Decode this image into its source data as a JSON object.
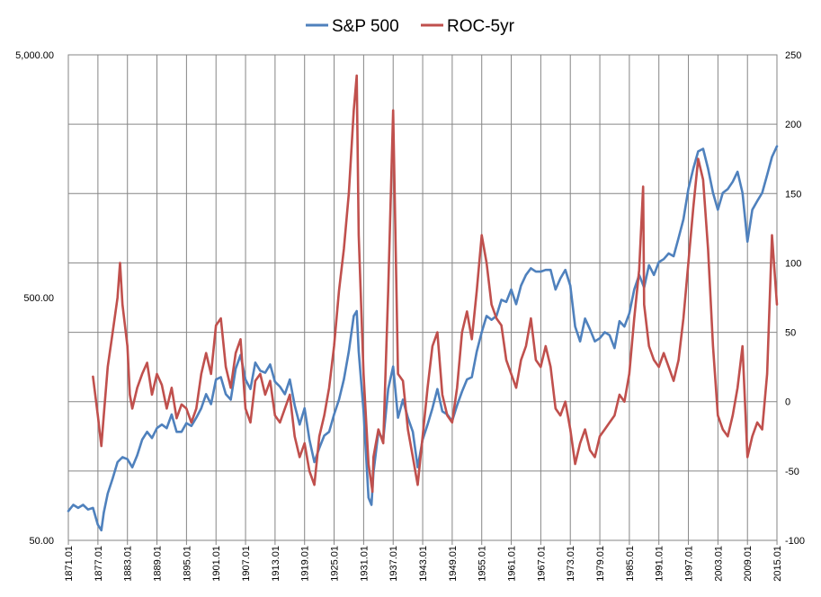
{
  "chart_data": {
    "type": "line",
    "title": "",
    "xlabel": "",
    "ylabel": "",
    "legend_position": "top-center",
    "grid": true,
    "x_ticks": [
      "1871.01",
      "1877.01",
      "1883.01",
      "1889.01",
      "1895.01",
      "1901.01",
      "1907.01",
      "1913.01",
      "1919.01",
      "1925.01",
      "1931.01",
      "1937.01",
      "1943.01",
      "1949.01",
      "1955.01",
      "1961.01",
      "1967.01",
      "1973.01",
      "1979.01",
      "1985.01",
      "1991.01",
      "1997.01",
      "2003.01",
      "2009.01",
      "2015.01"
    ],
    "y_left": {
      "scale": "log",
      "min": 50,
      "max": 5000,
      "tick_labels": [
        "5,000.00",
        "500.00",
        "50.00"
      ]
    },
    "y_right": {
      "scale": "linear",
      "min": -100,
      "max": 250,
      "step": 50,
      "tick_labels": [
        "250",
        "200",
        "150",
        "100",
        "50",
        "0",
        "-50",
        "-100"
      ]
    },
    "series": [
      {
        "name": "S&P 500",
        "axis": "left",
        "color": "#4f81bd",
        "points": [
          [
            1871.0,
            66
          ],
          [
            1872.0,
            70
          ],
          [
            1873.0,
            68
          ],
          [
            1874.0,
            70
          ],
          [
            1875.0,
            67
          ],
          [
            1876.0,
            68
          ],
          [
            1877.0,
            58
          ],
          [
            1877.7,
            55
          ],
          [
            1878.2,
            65
          ],
          [
            1879.0,
            78
          ],
          [
            1880.0,
            90
          ],
          [
            1881.0,
            105
          ],
          [
            1882.0,
            110
          ],
          [
            1883.0,
            108
          ],
          [
            1884.0,
            100
          ],
          [
            1885.0,
            112
          ],
          [
            1886.0,
            130
          ],
          [
            1887.0,
            140
          ],
          [
            1888.0,
            132
          ],
          [
            1889.0,
            145
          ],
          [
            1890.0,
            150
          ],
          [
            1891.0,
            145
          ],
          [
            1892.0,
            165
          ],
          [
            1893.0,
            140
          ],
          [
            1894.0,
            140
          ],
          [
            1895.0,
            152
          ],
          [
            1896.0,
            148
          ],
          [
            1897.0,
            160
          ],
          [
            1898.0,
            175
          ],
          [
            1899.0,
            200
          ],
          [
            1900.0,
            182
          ],
          [
            1901.0,
            230
          ],
          [
            1902.0,
            235
          ],
          [
            1903.0,
            200
          ],
          [
            1904.0,
            190
          ],
          [
            1905.0,
            255
          ],
          [
            1906.0,
            290
          ],
          [
            1907.0,
            230
          ],
          [
            1908.0,
            210
          ],
          [
            1909.0,
            270
          ],
          [
            1910.0,
            250
          ],
          [
            1911.0,
            245
          ],
          [
            1912.0,
            265
          ],
          [
            1913.0,
            225
          ],
          [
            1914.0,
            215
          ],
          [
            1915.0,
            200
          ],
          [
            1916.0,
            230
          ],
          [
            1917.0,
            180
          ],
          [
            1918.0,
            150
          ],
          [
            1919.0,
            175
          ],
          [
            1920.0,
            130
          ],
          [
            1921.0,
            105
          ],
          [
            1922.0,
            120
          ],
          [
            1923.0,
            135
          ],
          [
            1924.0,
            140
          ],
          [
            1925.0,
            165
          ],
          [
            1926.0,
            190
          ],
          [
            1927.0,
            230
          ],
          [
            1928.0,
            300
          ],
          [
            1929.0,
            420
          ],
          [
            1929.6,
            440
          ],
          [
            1930.0,
            300
          ],
          [
            1931.0,
            170
          ],
          [
            1932.0,
            75
          ],
          [
            1932.6,
            70
          ],
          [
            1933.0,
            95
          ],
          [
            1934.0,
            140
          ],
          [
            1935.0,
            130
          ],
          [
            1936.0,
            210
          ],
          [
            1937.0,
            260
          ],
          [
            1938.0,
            160
          ],
          [
            1939.0,
            190
          ],
          [
            1940.0,
            160
          ],
          [
            1941.0,
            140
          ],
          [
            1942.0,
            100
          ],
          [
            1943.0,
            130
          ],
          [
            1944.0,
            150
          ],
          [
            1945.0,
            175
          ],
          [
            1946.0,
            210
          ],
          [
            1947.0,
            170
          ],
          [
            1948.0,
            165
          ],
          [
            1949.0,
            155
          ],
          [
            1950.0,
            180
          ],
          [
            1951.0,
            205
          ],
          [
            1952.0,
            230
          ],
          [
            1953.0,
            235
          ],
          [
            1954.0,
            300
          ],
          [
            1955.0,
            360
          ],
          [
            1956.0,
            420
          ],
          [
            1957.0,
            405
          ],
          [
            1958.0,
            420
          ],
          [
            1959.0,
            490
          ],
          [
            1960.0,
            480
          ],
          [
            1961.0,
            540
          ],
          [
            1962.0,
            470
          ],
          [
            1963.0,
            560
          ],
          [
            1964.0,
            620
          ],
          [
            1965.0,
            660
          ],
          [
            1966.0,
            640
          ],
          [
            1967.0,
            640
          ],
          [
            1968.0,
            650
          ],
          [
            1969.0,
            650
          ],
          [
            1970.0,
            540
          ],
          [
            1971.0,
            600
          ],
          [
            1972.0,
            650
          ],
          [
            1973.0,
            560
          ],
          [
            1974.0,
            380
          ],
          [
            1975.0,
            330
          ],
          [
            1976.0,
            410
          ],
          [
            1977.0,
            370
          ],
          [
            1978.0,
            330
          ],
          [
            1979.0,
            340
          ],
          [
            1980.0,
            360
          ],
          [
            1981.0,
            350
          ],
          [
            1982.0,
            310
          ],
          [
            1983.0,
            400
          ],
          [
            1984.0,
            380
          ],
          [
            1985.0,
            430
          ],
          [
            1986.0,
            540
          ],
          [
            1987.0,
            620
          ],
          [
            1988.0,
            550
          ],
          [
            1989.0,
            680
          ],
          [
            1990.0,
            620
          ],
          [
            1991.0,
            700
          ],
          [
            1992.0,
            720
          ],
          [
            1993.0,
            760
          ],
          [
            1994.0,
            740
          ],
          [
            1995.0,
            880
          ],
          [
            1996.0,
            1050
          ],
          [
            1997.0,
            1400
          ],
          [
            1998.0,
            1700
          ],
          [
            1999.0,
            2000
          ],
          [
            2000.0,
            2050
          ],
          [
            2001.0,
            1700
          ],
          [
            2002.0,
            1350
          ],
          [
            2003.0,
            1150
          ],
          [
            2004.0,
            1350
          ],
          [
            2005.0,
            1400
          ],
          [
            2006.0,
            1500
          ],
          [
            2007.0,
            1650
          ],
          [
            2008.0,
            1350
          ],
          [
            2009.0,
            850
          ],
          [
            2010.0,
            1150
          ],
          [
            2011.0,
            1250
          ],
          [
            2012.0,
            1350
          ],
          [
            2013.0,
            1600
          ],
          [
            2014.0,
            1900
          ],
          [
            2015.0,
            2100
          ]
        ]
      },
      {
        "name": "ROC-5yr",
        "axis": "right",
        "color": "#c0504d",
        "points": [
          [
            1876.0,
            18
          ],
          [
            1877.0,
            -10
          ],
          [
            1877.7,
            -32
          ],
          [
            1878.2,
            -10
          ],
          [
            1879.0,
            25
          ],
          [
            1880.0,
            50
          ],
          [
            1881.0,
            75
          ],
          [
            1881.5,
            100
          ],
          [
            1882.0,
            70
          ],
          [
            1883.0,
            40
          ],
          [
            1883.5,
            5
          ],
          [
            1884.0,
            -5
          ],
          [
            1885.0,
            10
          ],
          [
            1886.0,
            20
          ],
          [
            1887.0,
            28
          ],
          [
            1888.0,
            5
          ],
          [
            1889.0,
            20
          ],
          [
            1890.0,
            12
          ],
          [
            1891.0,
            -5
          ],
          [
            1892.0,
            10
          ],
          [
            1893.0,
            -12
          ],
          [
            1894.0,
            -2
          ],
          [
            1895.0,
            -5
          ],
          [
            1896.0,
            -15
          ],
          [
            1897.0,
            -5
          ],
          [
            1898.0,
            20
          ],
          [
            1899.0,
            35
          ],
          [
            1900.0,
            20
          ],
          [
            1901.0,
            55
          ],
          [
            1902.0,
            60
          ],
          [
            1903.0,
            25
          ],
          [
            1904.0,
            10
          ],
          [
            1905.0,
            35
          ],
          [
            1906.0,
            45
          ],
          [
            1907.0,
            -5
          ],
          [
            1908.0,
            -15
          ],
          [
            1909.0,
            15
          ],
          [
            1910.0,
            20
          ],
          [
            1911.0,
            5
          ],
          [
            1912.0,
            15
          ],
          [
            1913.0,
            -10
          ],
          [
            1914.0,
            -15
          ],
          [
            1915.0,
            -5
          ],
          [
            1916.0,
            5
          ],
          [
            1917.0,
            -25
          ],
          [
            1918.0,
            -40
          ],
          [
            1919.0,
            -30
          ],
          [
            1920.0,
            -50
          ],
          [
            1921.0,
            -60
          ],
          [
            1922.0,
            -25
          ],
          [
            1923.0,
            -10
          ],
          [
            1924.0,
            10
          ],
          [
            1925.0,
            40
          ],
          [
            1926.0,
            80
          ],
          [
            1927.0,
            110
          ],
          [
            1928.0,
            150
          ],
          [
            1929.0,
            210
          ],
          [
            1929.6,
            235
          ],
          [
            1930.0,
            120
          ],
          [
            1931.0,
            20
          ],
          [
            1932.0,
            -45
          ],
          [
            1932.8,
            -65
          ],
          [
            1933.0,
            -40
          ],
          [
            1934.0,
            -20
          ],
          [
            1935.0,
            -30
          ],
          [
            1936.0,
            80
          ],
          [
            1937.0,
            210
          ],
          [
            1938.0,
            20
          ],
          [
            1939.0,
            15
          ],
          [
            1940.0,
            -20
          ],
          [
            1941.0,
            -40
          ],
          [
            1942.0,
            -60
          ],
          [
            1943.0,
            -25
          ],
          [
            1944.0,
            10
          ],
          [
            1945.0,
            40
          ],
          [
            1946.0,
            50
          ],
          [
            1947.0,
            5
          ],
          [
            1948.0,
            -10
          ],
          [
            1949.0,
            -15
          ],
          [
            1950.0,
            10
          ],
          [
            1951.0,
            50
          ],
          [
            1952.0,
            65
          ],
          [
            1953.0,
            45
          ],
          [
            1954.0,
            80
          ],
          [
            1955.0,
            120
          ],
          [
            1956.0,
            100
          ],
          [
            1957.0,
            70
          ],
          [
            1958.0,
            60
          ],
          [
            1959.0,
            55
          ],
          [
            1960.0,
            30
          ],
          [
            1961.0,
            20
          ],
          [
            1962.0,
            10
          ],
          [
            1963.0,
            30
          ],
          [
            1964.0,
            40
          ],
          [
            1965.0,
            60
          ],
          [
            1966.0,
            30
          ],
          [
            1967.0,
            25
          ],
          [
            1968.0,
            40
          ],
          [
            1969.0,
            25
          ],
          [
            1970.0,
            -5
          ],
          [
            1971.0,
            -10
          ],
          [
            1972.0,
            0
          ],
          [
            1973.0,
            -20
          ],
          [
            1974.0,
            -45
          ],
          [
            1975.0,
            -30
          ],
          [
            1976.0,
            -20
          ],
          [
            1977.0,
            -35
          ],
          [
            1978.0,
            -40
          ],
          [
            1979.0,
            -25
          ],
          [
            1980.0,
            -20
          ],
          [
            1981.0,
            -15
          ],
          [
            1982.0,
            -10
          ],
          [
            1983.0,
            5
          ],
          [
            1984.0,
            0
          ],
          [
            1985.0,
            20
          ],
          [
            1986.0,
            60
          ],
          [
            1987.0,
            95
          ],
          [
            1987.8,
            155
          ],
          [
            1988.0,
            70
          ],
          [
            1989.0,
            40
          ],
          [
            1990.0,
            30
          ],
          [
            1991.0,
            25
          ],
          [
            1992.0,
            35
          ],
          [
            1993.0,
            25
          ],
          [
            1994.0,
            15
          ],
          [
            1995.0,
            30
          ],
          [
            1996.0,
            60
          ],
          [
            1997.0,
            100
          ],
          [
            1998.0,
            140
          ],
          [
            1999.0,
            175
          ],
          [
            2000.0,
            160
          ],
          [
            2001.0,
            110
          ],
          [
            2002.0,
            40
          ],
          [
            2003.0,
            -10
          ],
          [
            2004.0,
            -20
          ],
          [
            2005.0,
            -25
          ],
          [
            2006.0,
            -10
          ],
          [
            2007.0,
            10
          ],
          [
            2008.0,
            40
          ],
          [
            2009.0,
            -40
          ],
          [
            2010.0,
            -25
          ],
          [
            2011.0,
            -15
          ],
          [
            2012.0,
            -20
          ],
          [
            2013.0,
            20
          ],
          [
            2014.0,
            120
          ],
          [
            2015.0,
            70
          ]
        ]
      }
    ]
  }
}
